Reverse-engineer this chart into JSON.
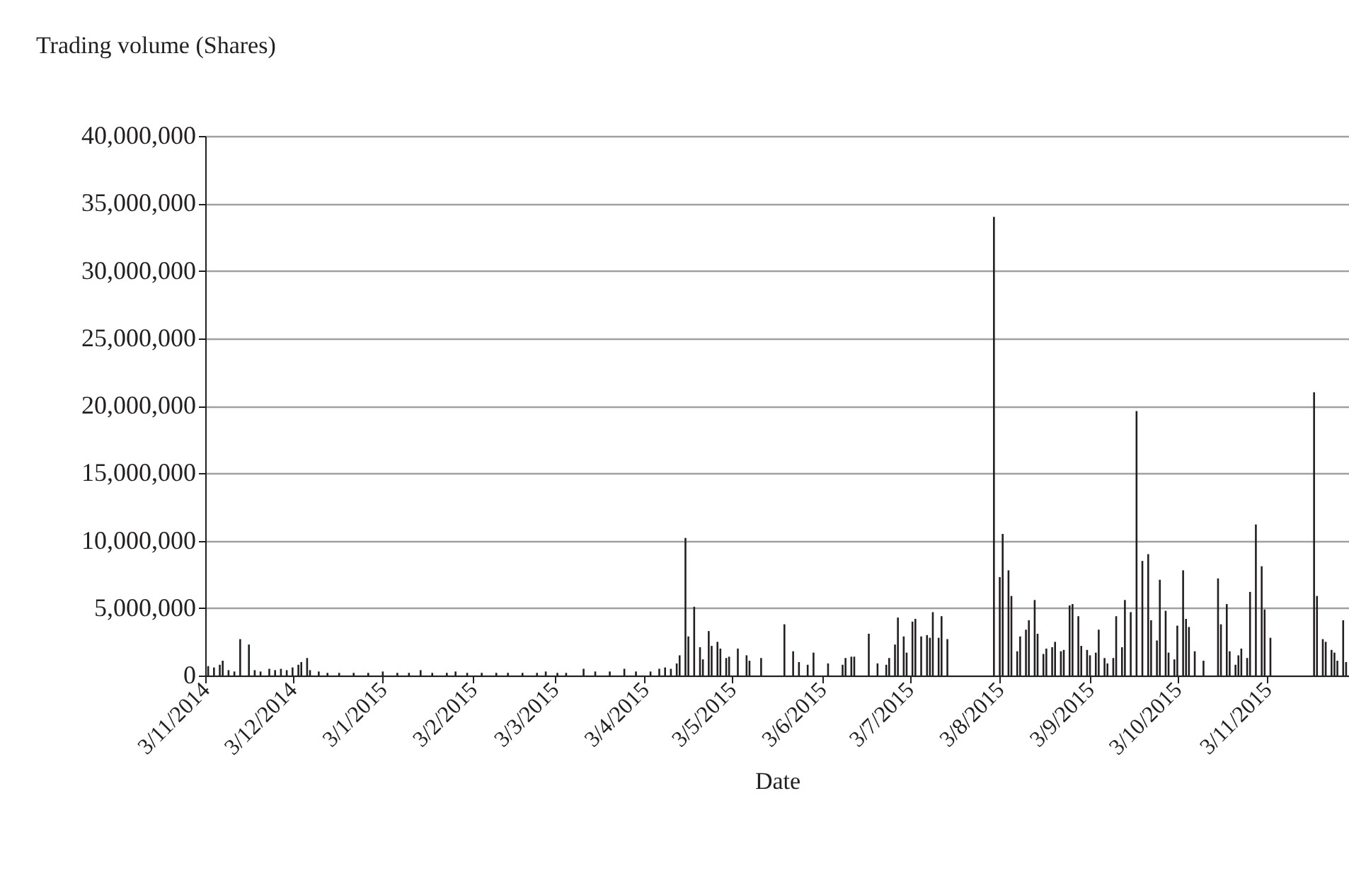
{
  "chart_data": {
    "type": "bar",
    "xlabel": "Date",
    "ylabel": "Trading volume (Shares)",
    "x": [
      "2014-11-04",
      "2014-11-06",
      "2014-11-08",
      "2014-11-09",
      "2014-11-11",
      "2014-11-13",
      "2014-11-15",
      "2014-11-18",
      "2014-11-20",
      "2014-11-22",
      "2014-11-25",
      "2014-11-27",
      "2014-11-29",
      "2014-12-01",
      "2014-12-03",
      "2014-12-05",
      "2014-12-06",
      "2014-12-08",
      "2014-12-09",
      "2014-12-12",
      "2014-12-15",
      "2014-12-19",
      "2014-12-24",
      "2014-12-29",
      "2015-01-03",
      "2015-01-08",
      "2015-01-12",
      "2015-01-16",
      "2015-01-20",
      "2015-01-25",
      "2015-01-28",
      "2015-02-01",
      "2015-02-06",
      "2015-02-11",
      "2015-02-15",
      "2015-02-20",
      "2015-02-25",
      "2015-02-28",
      "2015-03-04",
      "2015-03-07",
      "2015-03-13",
      "2015-03-17",
      "2015-03-22",
      "2015-03-27",
      "2015-03-31",
      "2015-04-05",
      "2015-04-08",
      "2015-04-10",
      "2015-04-12",
      "2015-04-14",
      "2015-04-15",
      "2015-04-17",
      "2015-04-18",
      "2015-04-20",
      "2015-04-22",
      "2015-04-23",
      "2015-04-25",
      "2015-04-26",
      "2015-04-28",
      "2015-04-29",
      "2015-05-01",
      "2015-05-02",
      "2015-05-05",
      "2015-05-08",
      "2015-05-09",
      "2015-05-13",
      "2015-05-21",
      "2015-05-24",
      "2015-05-26",
      "2015-05-29",
      "2015-05-31",
      "2015-06-05",
      "2015-06-10",
      "2015-06-11",
      "2015-06-13",
      "2015-06-14",
      "2015-06-19",
      "2015-06-22",
      "2015-06-25",
      "2015-06-26",
      "2015-06-28",
      "2015-06-29",
      "2015-07-01",
      "2015-07-02",
      "2015-07-04",
      "2015-07-05",
      "2015-07-07",
      "2015-07-09",
      "2015-07-10",
      "2015-07-11",
      "2015-07-13",
      "2015-07-14",
      "2015-07-16",
      "2015-08-01",
      "2015-08-03",
      "2015-08-04",
      "2015-08-06",
      "2015-08-07",
      "2015-08-09",
      "2015-08-10",
      "2015-08-12",
      "2015-08-13",
      "2015-08-15",
      "2015-08-16",
      "2015-08-18",
      "2015-08-19",
      "2015-08-21",
      "2015-08-22",
      "2015-08-24",
      "2015-08-25",
      "2015-08-27",
      "2015-08-28",
      "2015-08-30",
      "2015-08-31",
      "2015-09-02",
      "2015-09-03",
      "2015-09-05",
      "2015-09-06",
      "2015-09-08",
      "2015-09-09",
      "2015-09-11",
      "2015-09-12",
      "2015-09-14",
      "2015-09-15",
      "2015-09-17",
      "2015-09-19",
      "2015-09-21",
      "2015-09-23",
      "2015-09-24",
      "2015-09-26",
      "2015-09-27",
      "2015-09-29",
      "2015-09-30",
      "2015-10-02",
      "2015-10-03",
      "2015-10-05",
      "2015-10-06",
      "2015-10-07",
      "2015-10-09",
      "2015-10-12",
      "2015-10-17",
      "2015-10-18",
      "2015-10-20",
      "2015-10-21",
      "2015-10-23",
      "2015-10-24",
      "2015-10-25",
      "2015-10-27",
      "2015-10-28",
      "2015-10-30",
      "2015-11-01",
      "2015-11-02",
      "2015-11-04",
      "2015-11-19",
      "2015-11-20",
      "2015-11-22",
      "2015-11-23",
      "2015-11-25",
      "2015-11-26",
      "2015-11-27",
      "2015-11-29",
      "2015-11-30"
    ],
    "series": [
      {
        "color": "#231f20",
        "values": [
          700000,
          600000,
          800000,
          1100000,
          400000,
          300000,
          2700000,
          2300000,
          400000,
          300000,
          500000,
          400000,
          500000,
          400000,
          600000,
          800000,
          1000000,
          1300000,
          400000,
          300000,
          200000,
          200000,
          200000,
          200000,
          300000,
          200000,
          200000,
          400000,
          200000,
          200000,
          300000,
          200000,
          200000,
          200000,
          200000,
          200000,
          200000,
          300000,
          200000,
          200000,
          500000,
          300000,
          300000,
          500000,
          300000,
          300000,
          500000,
          600000,
          500000,
          900000,
          1500000,
          10200000,
          2900000,
          5100000,
          2100000,
          1200000,
          3300000,
          2200000,
          2500000,
          2000000,
          1300000,
          1400000,
          2000000,
          1500000,
          1100000,
          1300000,
          3800000,
          1800000,
          1000000,
          800000,
          1700000,
          900000,
          800000,
          1300000,
          1400000,
          1400000,
          3100000,
          900000,
          800000,
          1300000,
          2300000,
          4300000,
          2900000,
          1700000,
          4000000,
          4200000,
          2900000,
          3000000,
          2800000,
          4700000,
          2800000,
          4400000,
          2700000,
          34000000,
          7300000,
          10500000,
          7800000,
          5900000,
          1800000,
          2900000,
          3400000,
          4100000,
          5600000,
          3100000,
          1600000,
          2000000,
          2100000,
          2500000,
          1800000,
          1900000,
          5200000,
          5300000,
          4400000,
          2200000,
          1900000,
          1500000,
          1700000,
          3400000,
          1300000,
          900000,
          1300000,
          4400000,
          2100000,
          5600000,
          4700000,
          19600000,
          8500000,
          9000000,
          4100000,
          2600000,
          7100000,
          4800000,
          1700000,
          1200000,
          3700000,
          7800000,
          4200000,
          3600000,
          1800000,
          1100000,
          7200000,
          3800000,
          5300000,
          1800000,
          800000,
          1500000,
          2000000,
          1300000,
          6200000,
          11200000,
          8100000,
          4900000,
          2800000,
          21000000,
          5900000,
          2700000,
          2500000,
          1900000,
          1700000,
          1100000,
          4100000,
          1000000
        ]
      }
    ],
    "xlim": [
      "2014-11-03",
      "2015-12-01"
    ],
    "xticks": [
      {
        "value": "2014-11-03",
        "label": "3/11/2014"
      },
      {
        "value": "2014-12-03",
        "label": "3/12/2014"
      },
      {
        "value": "2015-01-03",
        "label": "3/1/2015"
      },
      {
        "value": "2015-02-03",
        "label": "3/2/2015"
      },
      {
        "value": "2015-03-03",
        "label": "3/3/2015"
      },
      {
        "value": "2015-04-03",
        "label": "3/4/2015"
      },
      {
        "value": "2015-05-03",
        "label": "3/5/2015"
      },
      {
        "value": "2015-06-03",
        "label": "3/6/2015"
      },
      {
        "value": "2015-07-03",
        "label": "3/7/2015"
      },
      {
        "value": "2015-08-03",
        "label": "3/8/2015"
      },
      {
        "value": "2015-09-03",
        "label": "3/9/2015"
      },
      {
        "value": "2015-10-03",
        "label": "3/10/2015"
      },
      {
        "value": "2015-11-03",
        "label": "3/11/2015"
      }
    ],
    "ylim": [
      0,
      40000000
    ],
    "yticks": [
      {
        "value": 0,
        "label": "0"
      },
      {
        "value": 5000000,
        "label": "5,000,000"
      },
      {
        "value": 10000000,
        "label": "10,000,000"
      },
      {
        "value": 15000000,
        "label": "15,000,000"
      },
      {
        "value": 20000000,
        "label": "20,000,000"
      },
      {
        "value": 25000000,
        "label": "25,000,000"
      },
      {
        "value": 30000000,
        "label": "30,000,000"
      },
      {
        "value": 35000000,
        "label": "35,000,000"
      },
      {
        "value": 40000000,
        "label": "40,000,000"
      }
    ],
    "grid": "y",
    "legend": false
  }
}
